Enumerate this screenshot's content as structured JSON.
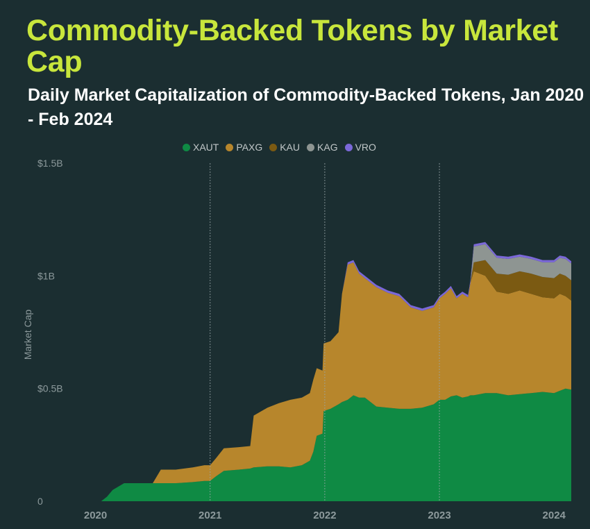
{
  "title": "Commodity-Backed Tokens by Market Cap",
  "subtitle": "Daily Market Capitalization of Commodity-Backed Tokens, Jan 2020 - Feb 2024",
  "chart_data": {
    "type": "area",
    "stacked": true,
    "title": "Commodity-Backed Tokens by Market Cap",
    "subtitle": "Daily Market Capitalization of Commodity-Backed Tokens, Jan 2020 - Feb 2024",
    "xlabel": "",
    "ylabel": "Market Cap",
    "ylim": [
      0,
      1.5
    ],
    "y_unit": "USD billions",
    "yticks": [
      0,
      0.5,
      1,
      1.5
    ],
    "ytick_labels": [
      "0",
      "$0.5B",
      "$1B",
      "$1.5B"
    ],
    "xticks": [
      2020,
      2021,
      2022,
      2023,
      2024
    ],
    "xtick_labels": [
      "2020",
      "2021",
      "2022",
      "2023",
      "2024"
    ],
    "x_range": [
      2019.7,
      2024.15
    ],
    "vertical_gridlines": [
      2021,
      2022,
      2023
    ],
    "legend_position": "top-center",
    "x": [
      2019.7,
      2019.95,
      2020.05,
      2020.1,
      2020.15,
      2020.25,
      2020.5,
      2020.57,
      2020.7,
      2020.85,
      2020.95,
      2021.0,
      2021.05,
      2021.12,
      2021.25,
      2021.35,
      2021.38,
      2021.5,
      2021.6,
      2021.7,
      2021.8,
      2021.87,
      2021.9,
      2021.93,
      2021.98,
      2021.99,
      2022.05,
      2022.12,
      2022.15,
      2022.2,
      2022.25,
      2022.3,
      2022.35,
      2022.45,
      2022.55,
      2022.65,
      2022.75,
      2022.85,
      2022.95,
      2023.0,
      2023.05,
      2023.1,
      2023.15,
      2023.2,
      2023.25,
      2023.27,
      2023.3,
      2023.4,
      2023.5,
      2023.6,
      2023.7,
      2023.8,
      2023.9,
      2024.0,
      2024.05,
      2024.1,
      2024.15
    ],
    "series": [
      {
        "name": "XAUT",
        "color": "#0f8a44",
        "values": [
          0,
          0,
          0,
          0.02,
          0.05,
          0.08,
          0.08,
          0.08,
          0.08,
          0.085,
          0.09,
          0.09,
          0.11,
          0.135,
          0.14,
          0.145,
          0.15,
          0.155,
          0.155,
          0.15,
          0.16,
          0.18,
          0.22,
          0.29,
          0.3,
          0.4,
          0.41,
          0.43,
          0.44,
          0.45,
          0.47,
          0.46,
          0.46,
          0.42,
          0.415,
          0.41,
          0.41,
          0.415,
          0.43,
          0.45,
          0.45,
          0.465,
          0.47,
          0.46,
          0.465,
          0.47,
          0.47,
          0.48,
          0.48,
          0.47,
          0.475,
          0.48,
          0.485,
          0.48,
          0.49,
          0.5,
          0.495
        ]
      },
      {
        "name": "PAXG",
        "color": "#b7862c",
        "values": [
          0,
          0,
          0,
          0,
          0,
          0,
          0,
          0.06,
          0.06,
          0.065,
          0.07,
          0.07,
          0.08,
          0.1,
          0.1,
          0.1,
          0.23,
          0.26,
          0.28,
          0.3,
          0.3,
          0.3,
          0.32,
          0.3,
          0.28,
          0.3,
          0.3,
          0.32,
          0.48,
          0.6,
          0.59,
          0.55,
          0.53,
          0.53,
          0.51,
          0.5,
          0.45,
          0.43,
          0.43,
          0.45,
          0.47,
          0.48,
          0.43,
          0.46,
          0.44,
          0.5,
          0.55,
          0.52,
          0.45,
          0.45,
          0.46,
          0.44,
          0.42,
          0.42,
          0.43,
          0.41,
          0.395
        ]
      },
      {
        "name": "KAU",
        "color": "#7b5a12",
        "values": [
          0,
          0,
          0,
          0,
          0,
          0,
          0,
          0,
          0,
          0,
          0,
          0,
          0,
          0,
          0,
          0,
          0,
          0,
          0,
          0,
          0,
          0,
          0,
          0,
          0,
          0,
          0,
          0,
          0,
          0,
          0,
          0,
          0,
          0,
          0,
          0,
          0,
          0,
          0,
          0,
          0,
          0,
          0,
          0,
          0,
          0,
          0.04,
          0.07,
          0.08,
          0.085,
          0.085,
          0.09,
          0.09,
          0.09,
          0.09,
          0.09,
          0.09
        ]
      },
      {
        "name": "KAG",
        "color": "#8e9592",
        "values": [
          0,
          0,
          0,
          0,
          0,
          0,
          0,
          0,
          0,
          0,
          0,
          0,
          0,
          0,
          0,
          0,
          0,
          0,
          0,
          0,
          0,
          0,
          0,
          0,
          0,
          0,
          0,
          0,
          0,
          0,
          0,
          0,
          0,
          0,
          0,
          0,
          0,
          0,
          0,
          0,
          0,
          0,
          0,
          0,
          0,
          0,
          0.07,
          0.07,
          0.07,
          0.07,
          0.065,
          0.065,
          0.065,
          0.07,
          0.07,
          0.075,
          0.075
        ]
      },
      {
        "name": "VRO",
        "color": "#7b68d8",
        "values": [
          0,
          0,
          0,
          0,
          0,
          0,
          0,
          0,
          0,
          0,
          0,
          0,
          0,
          0,
          0,
          0,
          0,
          0,
          0,
          0,
          0,
          0,
          0,
          0,
          0,
          0,
          0,
          0,
          0,
          0.01,
          0.01,
          0.01,
          0.01,
          0.01,
          0.01,
          0.01,
          0.01,
          0.01,
          0.01,
          0.01,
          0.01,
          0.01,
          0.01,
          0.01,
          0.01,
          0.01,
          0.01,
          0.01,
          0.01,
          0.01,
          0.01,
          0.01,
          0.01,
          0.01,
          0.01,
          0.01,
          0.01
        ]
      }
    ]
  },
  "colors": {
    "background": "#1b2e31",
    "title": "#c8e63c",
    "subtitle": "#ffffff",
    "axis_text": "#8d9a9c"
  }
}
